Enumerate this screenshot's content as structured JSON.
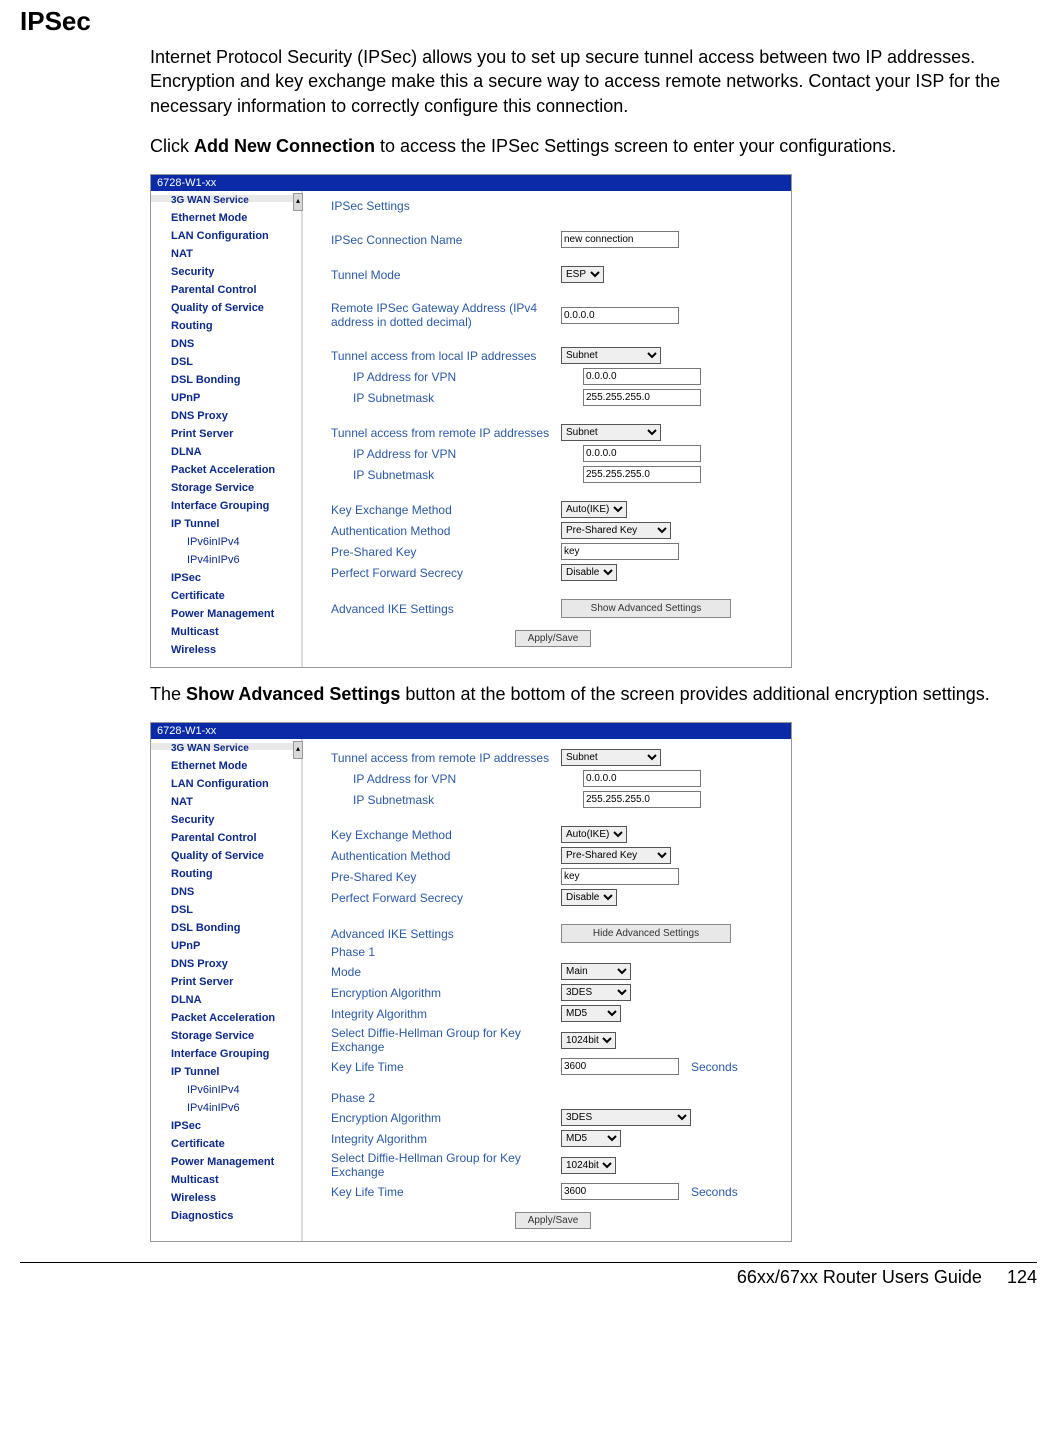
{
  "page": {
    "title": "IPSec",
    "intro": "Internet Protocol Security (IPSec) allows you to set up secure tunnel access between two IP addresses. Encryption and key exchange make this a secure way to access remote networks. Contact your ISP for the necessary information to correctly configure this connection.",
    "click_prefix": "Click ",
    "click_bold": "Add New Connection",
    "click_suffix": " to access the IPSec Settings screen to enter your configurations.",
    "mid_prefix": "The ",
    "mid_bold": "Show Advanced Settings",
    "mid_suffix": " button at the bottom of the screen provides additional encryption settings."
  },
  "footer": {
    "guide": "66xx/67xx Router Users Guide",
    "page_num": "124"
  },
  "shot1": {
    "titlebar": "6728-W1-xx",
    "sidebar_cut": "3G WAN Service",
    "sidebar": [
      {
        "t": "Ethernet Mode"
      },
      {
        "t": "LAN Configuration"
      },
      {
        "t": "NAT"
      },
      {
        "t": "Security"
      },
      {
        "t": "Parental Control"
      },
      {
        "t": "Quality of Service"
      },
      {
        "t": "Routing"
      },
      {
        "t": "DNS"
      },
      {
        "t": "DSL"
      },
      {
        "t": "DSL Bonding"
      },
      {
        "t": "UPnP"
      },
      {
        "t": "DNS Proxy"
      },
      {
        "t": "Print Server"
      },
      {
        "t": "DLNA"
      },
      {
        "t": "Packet Acceleration"
      },
      {
        "t": "Storage Service"
      },
      {
        "t": "Interface Grouping"
      },
      {
        "t": "IP Tunnel"
      },
      {
        "t": "IPv6inIPv4",
        "sub": true
      },
      {
        "t": "IPv4inIPv6",
        "sub": true
      },
      {
        "t": "IPSec"
      },
      {
        "t": "Certificate"
      },
      {
        "t": "Power Management"
      },
      {
        "t": "Multicast"
      },
      {
        "t": "Wireless"
      }
    ],
    "settings_heading": "IPSec Settings",
    "rows": {
      "conn_name_lbl": "IPSec Connection Name",
      "conn_name_val": "new connection",
      "tunnel_mode_lbl": "Tunnel Mode",
      "tunnel_mode_val": "ESP",
      "gw_lbl1": "Remote IPSec Gateway Address (IPv4",
      "gw_lbl2": "address in dotted decimal)",
      "gw_val": "0.0.0.0",
      "local_hdr": "Tunnel access from local IP addresses",
      "local_sel": "Subnet",
      "local_ip_lbl": "IP Address for VPN",
      "local_ip_val": "0.0.0.0",
      "local_mask_lbl": "IP Subnetmask",
      "local_mask_val": "255.255.255.0",
      "remote_hdr": "Tunnel access from remote IP addresses",
      "remote_sel": "Subnet",
      "remote_ip_lbl": "IP Address for VPN",
      "remote_ip_val": "0.0.0.0",
      "remote_mask_lbl": "IP Subnetmask",
      "remote_mask_val": "255.255.255.0",
      "kex_lbl": "Key Exchange Method",
      "kex_val": "Auto(IKE)",
      "auth_lbl": "Authentication Method",
      "auth_val": "Pre-Shared Key",
      "psk_lbl": "Pre-Shared Key",
      "psk_val": "key",
      "pfs_lbl": "Perfect Forward Secrecy",
      "pfs_val": "Disable",
      "advike_lbl": "Advanced IKE Settings",
      "advbtn": "Show Advanced Settings",
      "apply": "Apply/Save"
    }
  },
  "shot2": {
    "titlebar": "6728-W1-xx",
    "sidebar_cut": "3G WAN Service",
    "sidebar": [
      {
        "t": "Ethernet Mode"
      },
      {
        "t": "LAN Configuration"
      },
      {
        "t": "NAT"
      },
      {
        "t": "Security"
      },
      {
        "t": "Parental Control"
      },
      {
        "t": "Quality of Service"
      },
      {
        "t": "Routing"
      },
      {
        "t": "DNS"
      },
      {
        "t": "DSL"
      },
      {
        "t": "DSL Bonding"
      },
      {
        "t": "UPnP"
      },
      {
        "t": "DNS Proxy"
      },
      {
        "t": "Print Server"
      },
      {
        "t": "DLNA"
      },
      {
        "t": "Packet Acceleration"
      },
      {
        "t": "Storage Service"
      },
      {
        "t": "Interface Grouping"
      },
      {
        "t": "IP Tunnel"
      },
      {
        "t": "IPv6inIPv4",
        "sub": true
      },
      {
        "t": "IPv4inIPv6",
        "sub": true
      },
      {
        "t": "IPSec"
      },
      {
        "t": "Certificate"
      },
      {
        "t": "Power Management"
      },
      {
        "t": "Multicast"
      },
      {
        "t": "Wireless"
      },
      {
        "t": "Diagnostics"
      }
    ],
    "rows": {
      "remote_hdr": "Tunnel access from remote IP addresses",
      "remote_sel": "Subnet",
      "remote_ip_lbl": "IP Address for VPN",
      "remote_ip_val": "0.0.0.0",
      "remote_mask_lbl": "IP Subnetmask",
      "remote_mask_val": "255.255.255.0",
      "kex_lbl": "Key Exchange Method",
      "kex_val": "Auto(IKE)",
      "auth_lbl": "Authentication Method",
      "auth_val": "Pre-Shared Key",
      "psk_lbl": "Pre-Shared Key",
      "psk_val": "key",
      "pfs_lbl": "Perfect Forward Secrecy",
      "pfs_val": "Disable",
      "advike_lbl": "Advanced IKE Settings",
      "advbtn": "Hide Advanced Settings",
      "phase1": "Phase 1",
      "mode_lbl": "Mode",
      "mode_val": "Main",
      "enc_lbl": "Encryption Algorithm",
      "enc_val": "3DES",
      "int_lbl": "Integrity Algorithm",
      "int_val": "MD5",
      "dh_lbl1": "Select Diffie-Hellman Group for Key",
      "dh_lbl2": "Exchange",
      "dh_val": "1024bit",
      "life_lbl": "Key Life Time",
      "life_val": "3600",
      "seconds": "Seconds",
      "phase2": "Phase 2",
      "enc2_lbl": "Encryption Algorithm",
      "enc2_val": "3DES",
      "int2_lbl": "Integrity Algorithm",
      "int2_val": "MD5",
      "dh2_lbl1": "Select Diffie-Hellman Group for Key",
      "dh2_lbl2": "Exchange",
      "dh2_val": "1024bit",
      "life2_lbl": "Key Life Time",
      "life2_val": "3600",
      "apply": "Apply/Save"
    }
  }
}
